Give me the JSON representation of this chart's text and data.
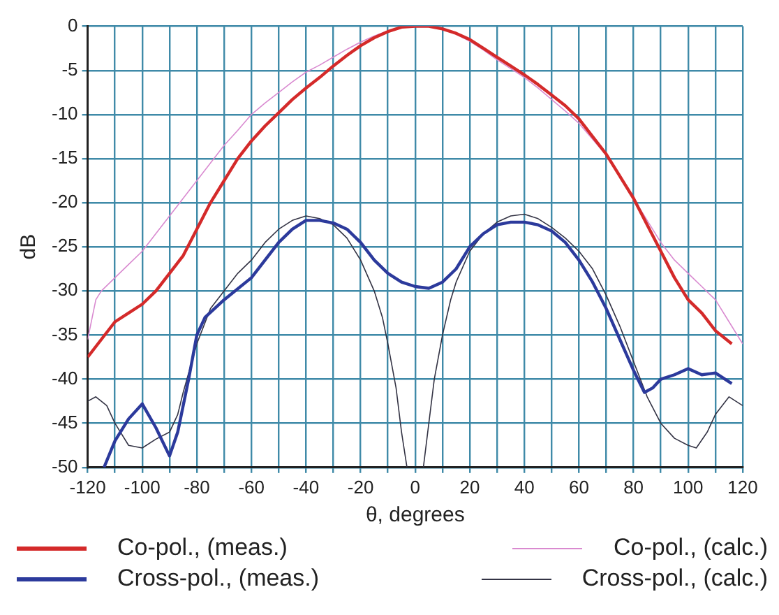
{
  "chart_data": {
    "type": "line",
    "xlabel": "θ, degrees",
    "ylabel": "dB",
    "xlim": [
      -120,
      120
    ],
    "ylim": [
      -50,
      0
    ],
    "xticks": [
      -120,
      {
        "value": -110,
        "label": null
      },
      -100,
      {
        "value": -90,
        "label": null
      },
      -80,
      {
        "value": -70,
        "label": null
      },
      -60,
      {
        "value": -50,
        "label": null
      },
      -40,
      {
        "value": -30,
        "label": null
      },
      -20,
      {
        "value": -10,
        "label": null
      },
      0,
      {
        "value": 10,
        "label": null
      },
      20,
      {
        "value": 30,
        "label": null
      },
      40,
      {
        "value": 50,
        "label": null
      },
      60,
      {
        "value": 70,
        "label": null
      },
      80,
      {
        "value": 90,
        "label": null
      },
      100,
      {
        "value": 110,
        "label": null
      },
      120
    ],
    "yticks": [
      -50,
      -45,
      -40,
      -35,
      -30,
      -25,
      -20,
      -15,
      -10,
      -5,
      0
    ],
    "grid": true,
    "legend": "bottom",
    "marker": "none",
    "line_style": "solid",
    "series": [
      {
        "name": "Co-pol.,  (meas.)",
        "color": "#d42a2a",
        "x": [
          -120,
          -115,
          -110,
          -105,
          -100,
          -95,
          -90,
          -85,
          -80,
          -75,
          -70,
          -65,
          -60,
          -55,
          -50,
          -45,
          -40,
          -35,
          -30,
          -25,
          -20,
          -15,
          -10,
          -5,
          0,
          5,
          10,
          15,
          20,
          25,
          30,
          35,
          40,
          45,
          50,
          55,
          60,
          65,
          70,
          75,
          80,
          85,
          90,
          95,
          100,
          105,
          110,
          116
        ],
        "values": [
          -37.5,
          -35.5,
          -33.5,
          -32.5,
          -31.5,
          -30,
          -28,
          -26,
          -23,
          -20,
          -17.5,
          -15,
          -13,
          -11.3,
          -9.8,
          -8.3,
          -7,
          -5.8,
          -4.5,
          -3.3,
          -2.2,
          -1.3,
          -0.6,
          -0.1,
          0,
          0,
          -0.3,
          -0.8,
          -1.5,
          -2.5,
          -3.5,
          -4.5,
          -5.5,
          -6.6,
          -7.8,
          -9,
          -10.5,
          -12.5,
          -14.5,
          -17,
          -19.5,
          -22.5,
          -25.5,
          -28.5,
          -31,
          -32.5,
          -34.5,
          -36
        ]
      },
      {
        "name": "Cross-pol.,  (meas.)",
        "color": "#2c3a9c",
        "x": [
          -114,
          -110,
          -105,
          -100,
          -95,
          -90,
          -87,
          -83,
          -80,
          -77,
          -70,
          -60,
          -55,
          -50,
          -45,
          -40,
          -35,
          -30,
          -25,
          -20,
          -15,
          -10,
          -5,
          0,
          5,
          10,
          15,
          20,
          25,
          30,
          35,
          40,
          45,
          50,
          55,
          60,
          65,
          70,
          75,
          80,
          84,
          87,
          90,
          95,
          100,
          105,
          110,
          116
        ],
        "values": [
          -50,
          -47,
          -44.5,
          -42.8,
          -45.5,
          -48.7,
          -46,
          -40,
          -35,
          -33,
          -31,
          -28.5,
          -26.5,
          -24.5,
          -23,
          -22,
          -22,
          -22.3,
          -23,
          -24.5,
          -26.5,
          -28,
          -29,
          -29.5,
          -29.7,
          -29,
          -27.5,
          -25,
          -23.5,
          -22.5,
          -22.2,
          -22.2,
          -22.5,
          -23.2,
          -24.5,
          -26.5,
          -29,
          -32,
          -35.5,
          -39,
          -41.5,
          -41,
          -40,
          -39.5,
          -38.8,
          -39.5,
          -39.3,
          -40.5
        ]
      },
      {
        "name": "Co-pol.,  (calc.)",
        "color": "#d98ad0",
        "x": [
          -120,
          -117,
          -115,
          -110,
          -105,
          -100,
          -95,
          -90,
          -85,
          -80,
          -75,
          -70,
          -65,
          -60,
          -55,
          -50,
          -45,
          -40,
          -35,
          -30,
          -25,
          -20,
          -15,
          -10,
          -5,
          0,
          5,
          10,
          15,
          20,
          25,
          30,
          35,
          40,
          45,
          50,
          55,
          60,
          65,
          70,
          75,
          80,
          85,
          90,
          95,
          100,
          105,
          110,
          115,
          120
        ],
        "values": [
          -35.5,
          -31,
          -30,
          -28.5,
          -27,
          -25.5,
          -23.5,
          -21.5,
          -19.5,
          -17.5,
          -15.5,
          -13.5,
          -11.8,
          -10,
          -8.7,
          -7.5,
          -6.3,
          -5.2,
          -4.4,
          -3.5,
          -2.6,
          -1.8,
          -1.1,
          -0.5,
          -0.1,
          0,
          0,
          -0.3,
          -0.9,
          -1.7,
          -2.7,
          -3.8,
          -4.8,
          -5.8,
          -7,
          -8.3,
          -9.6,
          -11,
          -12.8,
          -14.6,
          -17,
          -19.5,
          -22,
          -24.5,
          -26.5,
          -28,
          -29.5,
          -31,
          -33.5,
          -36
        ]
      },
      {
        "name": "Cross-pol.,  (calc.)",
        "color": "#333344",
        "x": [
          -120,
          -117,
          -113,
          -110,
          -105,
          -100,
          -95,
          -90,
          -87,
          -85,
          -80,
          -75,
          -70,
          -65,
          -60,
          -55,
          -50,
          -45,
          -40,
          -35,
          -30,
          -25,
          -20,
          -15,
          -12,
          -10,
          -7,
          -5,
          -3,
          0,
          3,
          5,
          7,
          10,
          13,
          15,
          20,
          25,
          30,
          35,
          40,
          45,
          50,
          55,
          60,
          65,
          70,
          75,
          80,
          85,
          90,
          95,
          100,
          103,
          107,
          110,
          115,
          120
        ],
        "values": [
          -42.5,
          -42,
          -43,
          -45,
          -47.5,
          -47.8,
          -46.8,
          -46,
          -44,
          -41.5,
          -36,
          -32,
          -30,
          -28,
          -26.5,
          -24.5,
          -23,
          -22,
          -21.5,
          -21.8,
          -22.5,
          -24,
          -26.5,
          -30,
          -33,
          -36,
          -41,
          -46,
          -50,
          null,
          -50,
          -45,
          -40,
          -35,
          -31,
          -29,
          -25.5,
          -23.5,
          -22.2,
          -21.5,
          -21.3,
          -21.8,
          -22.8,
          -24,
          -25.5,
          -27.5,
          -30.5,
          -34,
          -38,
          -42,
          -45,
          -46.7,
          -47.5,
          -47.8,
          -46,
          -44,
          -42,
          -43
        ]
      }
    ]
  }
}
